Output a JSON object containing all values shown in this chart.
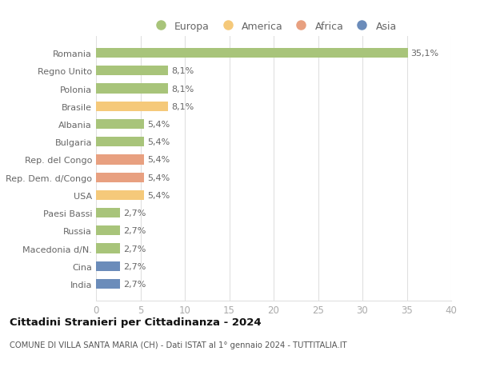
{
  "categories": [
    "India",
    "Cina",
    "Macedonia d/N.",
    "Russia",
    "Paesi Bassi",
    "USA",
    "Rep. Dem. d/Congo",
    "Rep. del Congo",
    "Bulgaria",
    "Albania",
    "Brasile",
    "Polonia",
    "Regno Unito",
    "Romania"
  ],
  "values": [
    2.7,
    2.7,
    2.7,
    2.7,
    2.7,
    5.4,
    5.4,
    5.4,
    5.4,
    5.4,
    8.1,
    8.1,
    8.1,
    35.1
  ],
  "colors": [
    "#6b8cba",
    "#6b8cba",
    "#a8c47a",
    "#a8c47a",
    "#a8c47a",
    "#f5c97a",
    "#e8a080",
    "#e8a080",
    "#a8c47a",
    "#a8c47a",
    "#f5c97a",
    "#a8c47a",
    "#a8c47a",
    "#a8c47a"
  ],
  "labels": [
    "2,7%",
    "2,7%",
    "2,7%",
    "2,7%",
    "2,7%",
    "5,4%",
    "5,4%",
    "5,4%",
    "5,4%",
    "5,4%",
    "8,1%",
    "8,1%",
    "8,1%",
    "35,1%"
  ],
  "legend_names": [
    "Europa",
    "America",
    "Africa",
    "Asia"
  ],
  "legend_colors": [
    "#a8c47a",
    "#f5c97a",
    "#e8a080",
    "#6b8cba"
  ],
  "title": "Cittadini Stranieri per Cittadinanza - 2024",
  "subtitle": "COMUNE DI VILLA SANTA MARIA (CH) - Dati ISTAT al 1° gennaio 2024 - TUTTITALIA.IT",
  "xlim": [
    0,
    40
  ],
  "xticks": [
    0,
    5,
    10,
    15,
    20,
    25,
    30,
    35,
    40
  ],
  "background_color": "#ffffff",
  "bar_height": 0.55,
  "label_color": "#666666",
  "grid_color": "#e0e0e0",
  "tick_color": "#aaaaaa",
  "title_color": "#111111",
  "subtitle_color": "#555555",
  "label_fontsize": 8.0,
  "ytick_fontsize": 8.0,
  "xtick_fontsize": 8.5
}
